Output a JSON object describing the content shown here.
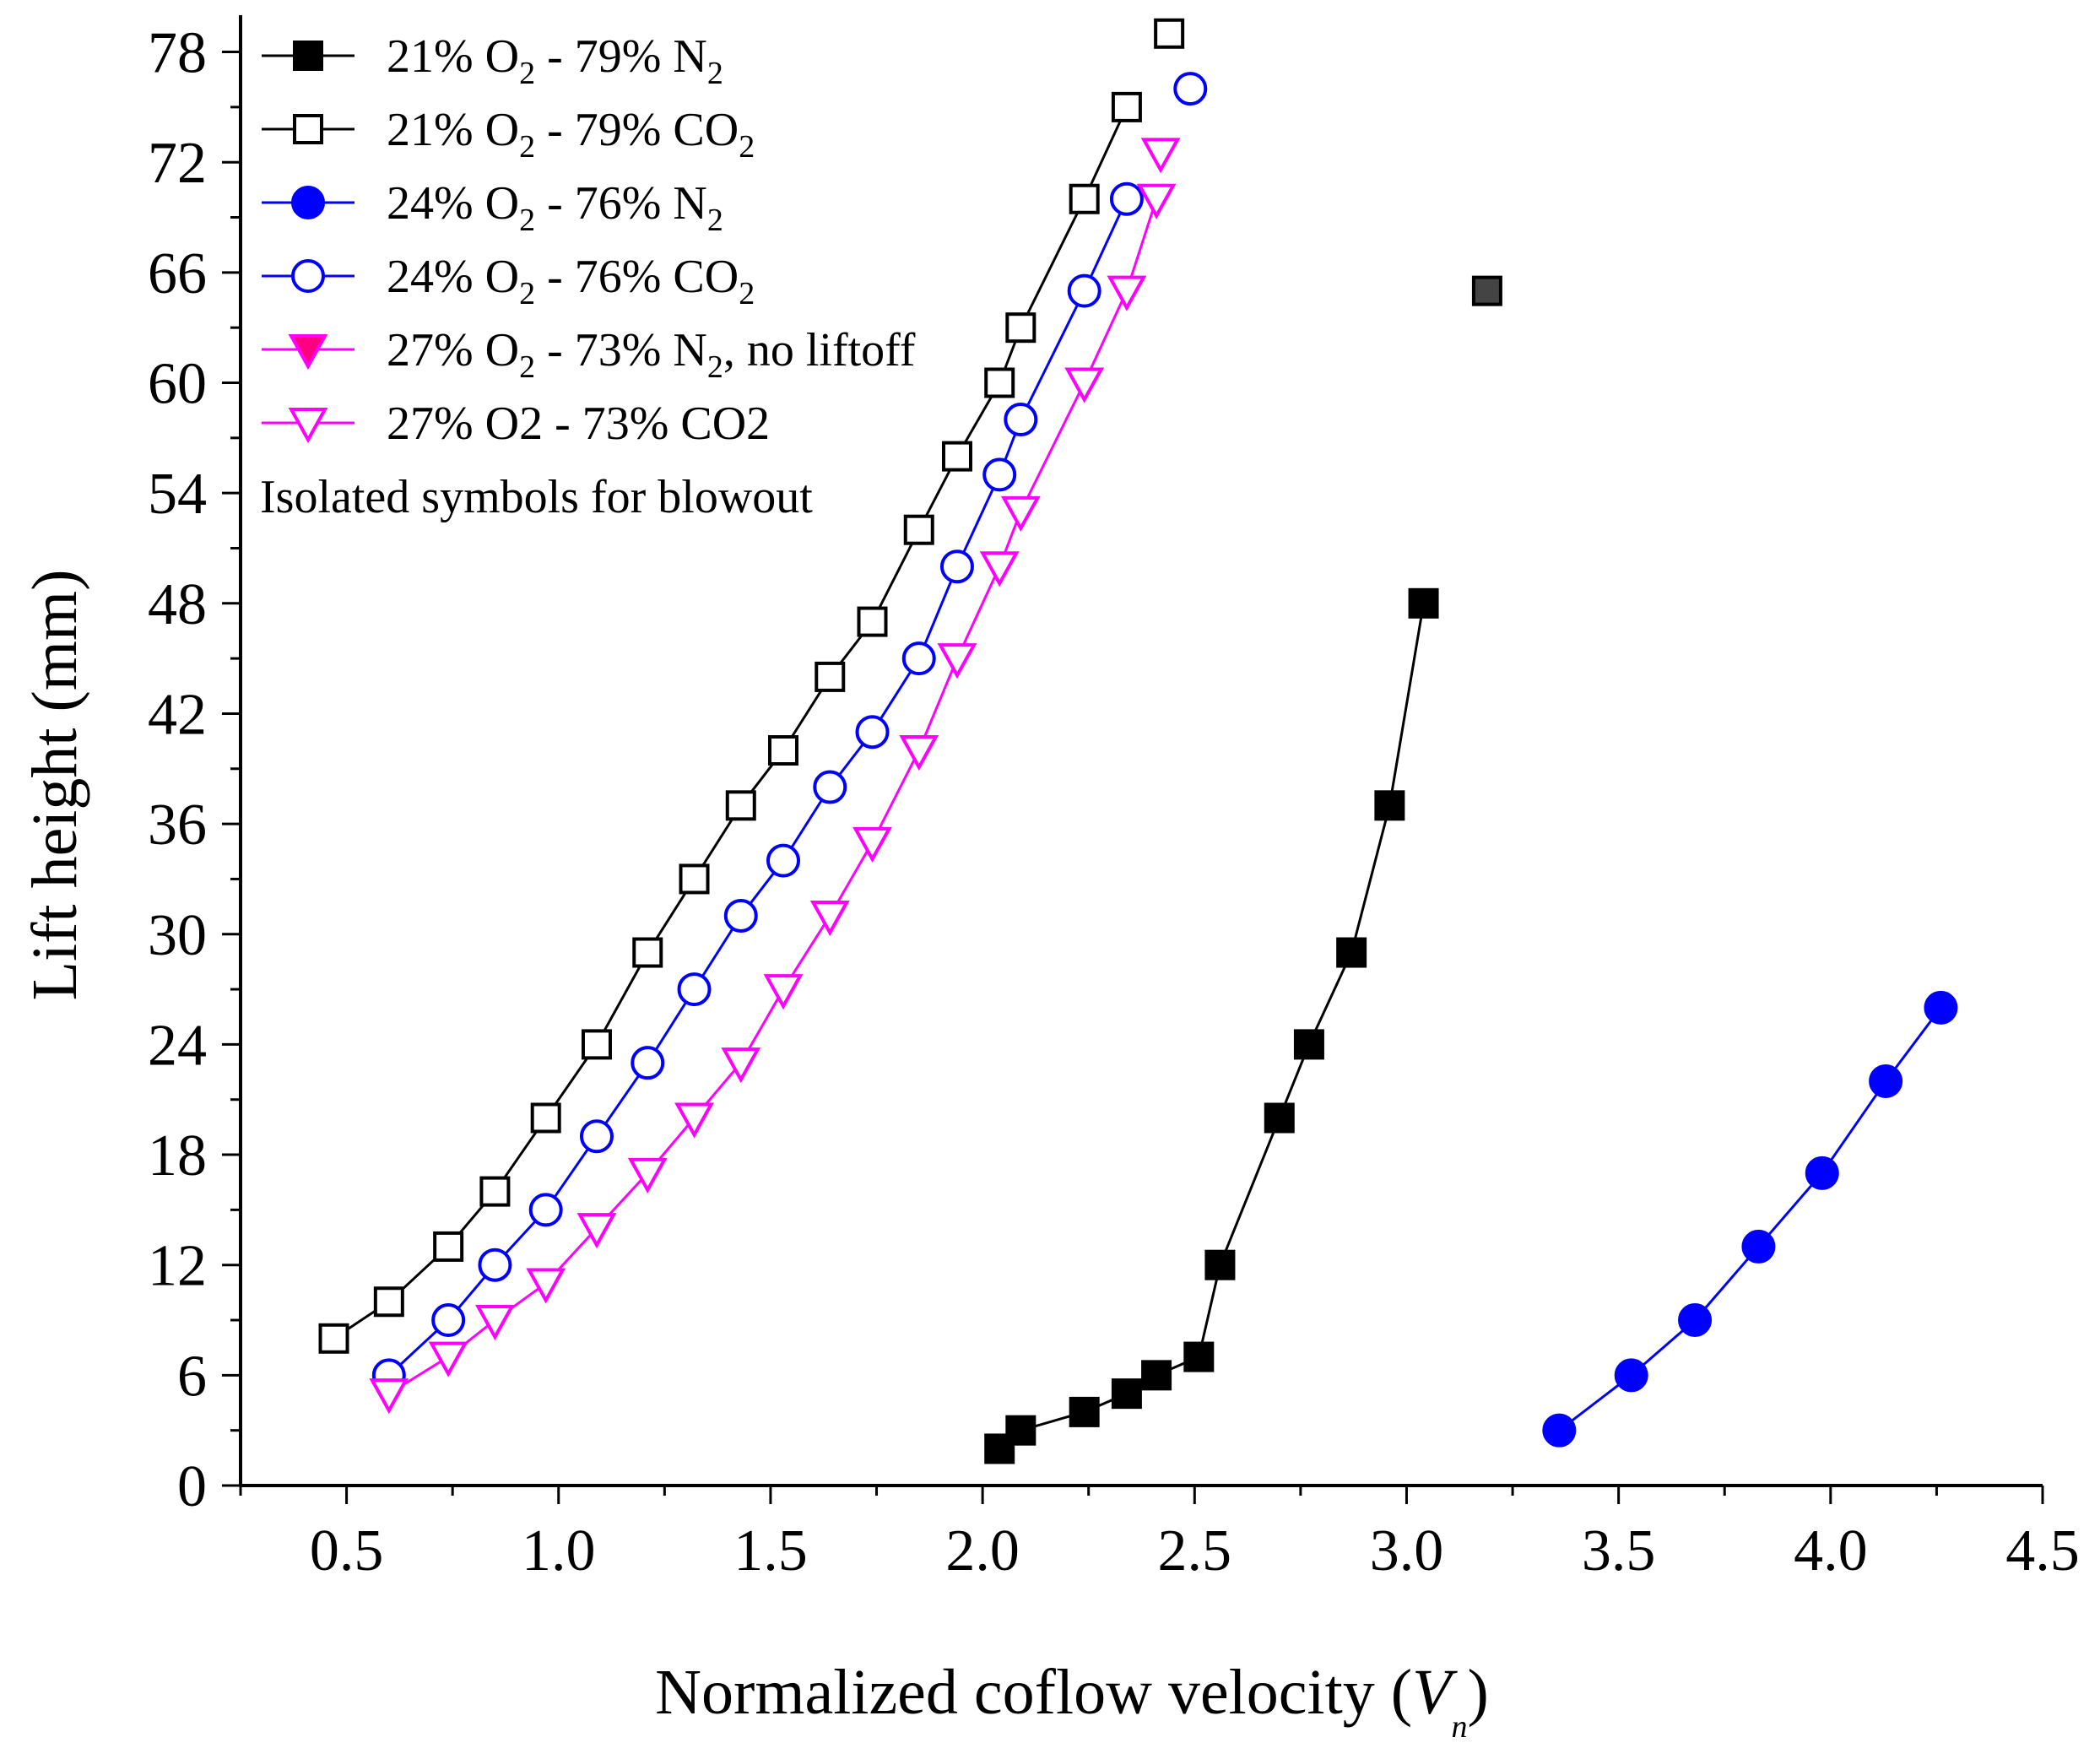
{
  "chart_data": {
    "type": "line",
    "title": "",
    "xlabel": {
      "main": "Normalized coflow velocity (",
      "var": "V",
      "sub": "n",
      "close": ")"
    },
    "ylabel": "Lift height (mm)",
    "xlim": [
      0.25,
      4.5
    ],
    "ylim": [
      0,
      80
    ],
    "x_ticks": [
      0.5,
      1.0,
      1.5,
      2.0,
      2.5,
      3.0,
      3.5,
      4.0,
      4.5
    ],
    "x_tick_labels": [
      "0.5",
      "1.0",
      "1.5",
      "2.0",
      "2.5",
      "3.0",
      "3.5",
      "4.0",
      "4.5"
    ],
    "y_ticks": [
      0,
      6,
      12,
      18,
      24,
      30,
      36,
      42,
      48,
      54,
      60,
      66,
      72,
      78
    ],
    "y_tick_labels": [
      "0",
      "6",
      "12",
      "18",
      "24",
      "30",
      "36",
      "42",
      "48",
      "54",
      "60",
      "66",
      "72",
      "78"
    ],
    "grid": false,
    "legend_position": "top-left",
    "legend_note": "Isolated symbols for blowout",
    "series": [
      {
        "name": "21% O2 - 79% N2",
        "label_parts": [
          [
            "21% O",
            false
          ],
          [
            "2",
            true
          ],
          [
            " - 79% N",
            false
          ],
          [
            "2",
            true
          ]
        ],
        "marker": "square",
        "filled": true,
        "color": "#000000",
        "fill": "#000000",
        "x": [
          2.04,
          2.09,
          2.24,
          2.34,
          2.41,
          2.51,
          2.56,
          2.7,
          2.77,
          2.87,
          2.96,
          3.04
        ],
        "y": [
          2,
          3,
          4,
          5,
          6,
          7,
          12,
          20,
          24,
          29,
          37,
          48
        ],
        "blowout": {
          "x": 3.19,
          "y": 65,
          "fill": "#444444"
        }
      },
      {
        "name": "21% O2 - 79% CO2",
        "label_parts": [
          [
            "21% O",
            false
          ],
          [
            "2",
            true
          ],
          [
            " - 79% CO",
            false
          ],
          [
            "2",
            true
          ]
        ],
        "marker": "square",
        "filled": false,
        "color": "#000000",
        "fill": "#ffffff",
        "x": [
          0.47,
          0.6,
          0.74,
          0.85,
          0.97,
          1.09,
          1.21,
          1.32,
          1.43,
          1.53,
          1.64,
          1.74,
          1.85,
          1.94,
          2.04,
          2.09,
          2.24,
          2.34
        ],
        "y": [
          8,
          10,
          13,
          16,
          20,
          24,
          29,
          33,
          37,
          40,
          44,
          47,
          52,
          56,
          60,
          63,
          70,
          75
        ],
        "blowout": {
          "x": 2.44,
          "y": 79,
          "fill": "#ffffff"
        }
      },
      {
        "name": "24% O2 - 76% N2",
        "label_parts": [
          [
            "24% O",
            false
          ],
          [
            "2",
            true
          ],
          [
            " - 76% N",
            false
          ],
          [
            "2",
            true
          ]
        ],
        "marker": "circle",
        "filled": true,
        "color": "#0000ff",
        "fill": "#0000ff",
        "x": [
          3.36,
          3.53,
          3.68,
          3.83,
          3.98,
          4.13,
          4.26
        ],
        "y": [
          3,
          6,
          9,
          13,
          17,
          22,
          26
        ],
        "blowout": null
      },
      {
        "name": "24% O2 - 76% CO2",
        "label_parts": [
          [
            "24% O",
            false
          ],
          [
            "2",
            true
          ],
          [
            " - 76% CO",
            false
          ],
          [
            "2",
            true
          ]
        ],
        "marker": "circle",
        "filled": false,
        "color": "#0000ff",
        "fill": "#ffffff",
        "x": [
          0.6,
          0.74,
          0.85,
          0.97,
          1.09,
          1.21,
          1.32,
          1.43,
          1.53,
          1.64,
          1.74,
          1.85,
          1.94,
          2.04,
          2.09,
          2.24,
          2.34
        ],
        "y": [
          6,
          9,
          12,
          15,
          19,
          23,
          27,
          31,
          34,
          38,
          41,
          45,
          50,
          55,
          58,
          65,
          70
        ],
        "blowout": {
          "x": 2.49,
          "y": 76,
          "fill": "#ffffff"
        }
      },
      {
        "name": "27% O2 - 73% N2, no liftoff",
        "label_parts": [
          [
            "27% O",
            false
          ],
          [
            "2",
            true
          ],
          [
            " - 73% N",
            false
          ],
          [
            "2",
            true
          ],
          [
            ", no liftoff",
            false
          ]
        ],
        "marker": "triangle-down",
        "filled": true,
        "color": "#ff00ff",
        "fill": "#ff0080",
        "x": [],
        "y": [],
        "blowout": null
      },
      {
        "name": "27% O2 - 73% CO2",
        "label_parts": [
          [
            "27% O2 - 73% CO2",
            false
          ]
        ],
        "marker": "triangle-down",
        "filled": false,
        "color": "#ff00ff",
        "fill": "#ffffff",
        "x": [
          0.6,
          0.74,
          0.85,
          0.97,
          1.09,
          1.21,
          1.32,
          1.43,
          1.53,
          1.64,
          1.74,
          1.85,
          1.94,
          2.04,
          2.09,
          2.24,
          2.34,
          2.41
        ],
        "y": [
          5,
          7,
          9,
          11,
          14,
          17,
          20,
          23,
          27,
          31,
          35,
          40,
          45,
          50,
          53,
          60,
          65,
          70
        ],
        "blowout": {
          "x": 2.42,
          "y": 72.5,
          "fill": "#ffffff"
        }
      }
    ]
  }
}
